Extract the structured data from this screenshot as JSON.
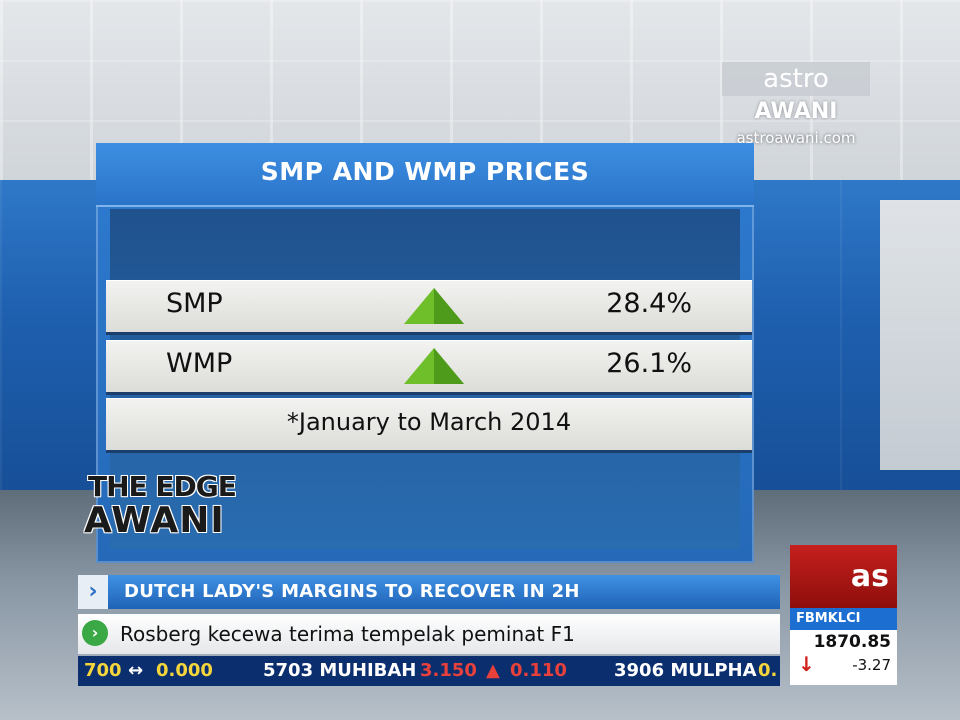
{
  "channel": {
    "brand": "astro",
    "name": "AWANI",
    "url": "astroawani.com"
  },
  "graphic": {
    "title": "SMP AND WMP PRICES",
    "rows": [
      {
        "label": "SMP",
        "trend": "up-arrow-icon",
        "value": "28.4%"
      },
      {
        "label": "WMP",
        "trend": "up-arrow-icon",
        "value": "26.1%"
      }
    ],
    "note": "*January to March 2014",
    "colors": {
      "panel": "#2a74c9",
      "arrow": "#6fbf2a"
    }
  },
  "show": {
    "line1": "THE EDGE",
    "line2": "AWANI"
  },
  "headline": {
    "text": "DUTCH LADY'S MARGINS TO RECOVER IN 2H"
  },
  "news": {
    "text": "Rosberg kecewa terima tempelak peminat F1"
  },
  "ticker": {
    "items": [
      {
        "code": "700",
        "arrow": "↔",
        "value": "0.000"
      },
      {
        "code": "5703 MUHIBAH",
        "value": "3.150",
        "arrow": "▲",
        "change": "0.110"
      },
      {
        "code": "3906 MULPHA",
        "value": "0."
      }
    ]
  },
  "market": {
    "logo": "as",
    "index_name": "FBMKLCI",
    "index_value": "1870.85",
    "change": "-3.27",
    "direction": "down-arrow-icon"
  }
}
